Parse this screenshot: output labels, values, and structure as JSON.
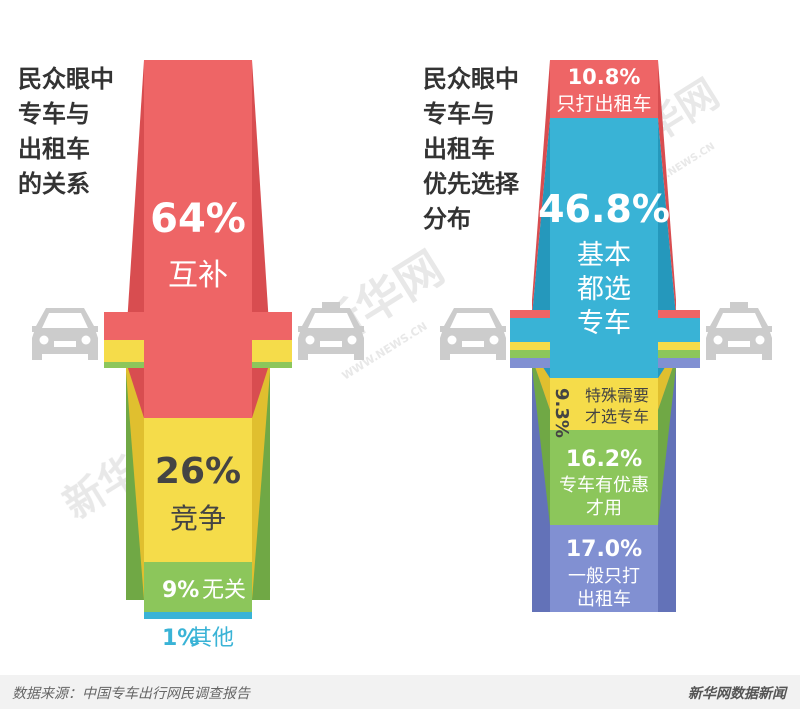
{
  "colors": {
    "red": "#ee6566",
    "red_dark": "#d84d50",
    "yellow": "#f5dc4a",
    "yellow_dark": "#e0bf2f",
    "green": "#8cc65b",
    "green_dark": "#70a845",
    "blue": "#39b3d6",
    "blue_dark": "#2598bc",
    "purple": "#8190d2",
    "purple_dark": "#6372b8",
    "gray_car": "#cccccc",
    "footer_bg": "#f2f2f2"
  },
  "icons": {
    "car_left": "car-front-icon",
    "taxi_right": "taxi-front-icon"
  },
  "watermark": {
    "text": "新华网",
    "url": "WWW.NEWS.CN"
  },
  "left_chart": {
    "title_lines": [
      "民众眼中",
      "专车与",
      "出租车",
      "的关系"
    ],
    "segments": [
      {
        "pct": "64%",
        "label": "互补"
      },
      {
        "pct": "26%",
        "label": "竞争"
      },
      {
        "pct": "9%",
        "label": "无关"
      },
      {
        "pct": "1%",
        "label": "其他"
      }
    ]
  },
  "right_chart": {
    "title_lines": [
      "民众眼中",
      "专车与",
      "出租车",
      "优先选择",
      "分布"
    ],
    "segments": [
      {
        "pct": "10.8%",
        "label_lines": [
          "只打出租车"
        ]
      },
      {
        "pct": "46.8%",
        "label_lines": [
          "基本",
          "都选",
          "专车"
        ]
      },
      {
        "pct": "9.3%",
        "label_lines": [
          "特殊需要",
          "才选专车"
        ]
      },
      {
        "pct": "16.2%",
        "label_lines": [
          "专车有优惠",
          "才用"
        ]
      },
      {
        "pct": "17.0%",
        "label_lines": [
          "一般只打",
          "出租车"
        ]
      }
    ]
  },
  "footer": {
    "source": "数据来源：中国专车出行网民调查报告",
    "brand": "新华网数据新闻"
  },
  "chart_data": [
    {
      "type": "bar",
      "title": "民众眼中专车与出租车的关系",
      "categories": [
        "互补",
        "竞争",
        "无关",
        "其他"
      ],
      "values": [
        64,
        26,
        9,
        1
      ],
      "unit": "%"
    },
    {
      "type": "bar",
      "title": "民众眼中专车与出租车优先选择分布",
      "categories": [
        "只打出租车",
        "基本都选专车",
        "特殊需要才选专车",
        "专车有优惠才用",
        "一般只打出租车"
      ],
      "values": [
        10.8,
        46.8,
        9.3,
        16.2,
        17.0
      ],
      "unit": "%"
    }
  ]
}
